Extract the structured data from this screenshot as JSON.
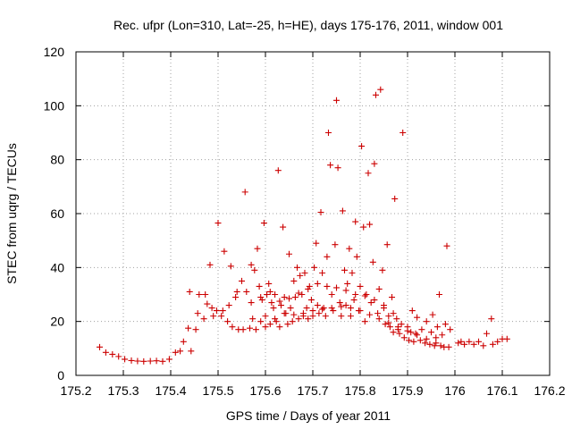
{
  "chart_data": {
    "type": "scatter",
    "title": "Rec. ufpr (Lon=310, Lat=-25, h=HE), days 175-176, 2011, window 001",
    "xlabel": "GPS time / Days of year 2011",
    "ylabel": "STEC from uqrg / TECUs",
    "xlim": [
      175.2,
      176.2
    ],
    "ylim": [
      0,
      120
    ],
    "xticks": [
      175.2,
      175.3,
      175.4,
      175.5,
      175.6,
      175.7,
      175.8,
      175.9,
      176.0,
      176.1,
      176.2
    ],
    "xtick_labels": [
      "175.2",
      "175.3",
      "175.4",
      "175.5",
      "175.6",
      "175.7",
      "175.8",
      "175.9",
      "176",
      "176.1",
      "176.2"
    ],
    "yticks": [
      0,
      20,
      40,
      60,
      80,
      100,
      120
    ],
    "ytick_labels": [
      "0",
      "20",
      "40",
      "60",
      "80",
      "100",
      "120"
    ],
    "grid": true,
    "marker": "plus",
    "color": "#cc0000",
    "points": [
      [
        175.25,
        10.5
      ],
      [
        175.263,
        8.5
      ],
      [
        175.277,
        7.8
      ],
      [
        175.29,
        7.0
      ],
      [
        175.303,
        6.0
      ],
      [
        175.317,
        5.5
      ],
      [
        175.33,
        5.3
      ],
      [
        175.343,
        5.2
      ],
      [
        175.357,
        5.3
      ],
      [
        175.37,
        5.4
      ],
      [
        175.383,
        5.2
      ],
      [
        175.397,
        6.0
      ],
      [
        175.41,
        8.5
      ],
      [
        175.42,
        9.0
      ],
      [
        175.427,
        12.5
      ],
      [
        175.437,
        17.5
      ],
      [
        175.44,
        31.0
      ],
      [
        175.443,
        9.0
      ],
      [
        175.453,
        17.0
      ],
      [
        175.457,
        23.0
      ],
      [
        175.46,
        30.0
      ],
      [
        175.47,
        21.0
      ],
      [
        175.473,
        30.0
      ],
      [
        175.477,
        26.5
      ],
      [
        175.483,
        41.0
      ],
      [
        175.487,
        25.0
      ],
      [
        175.49,
        22.0
      ],
      [
        175.497,
        24.0
      ],
      [
        175.5,
        56.5
      ],
      [
        175.507,
        22.0
      ],
      [
        175.51,
        24.0
      ],
      [
        175.513,
        46.0
      ],
      [
        175.52,
        20.0
      ],
      [
        175.523,
        26.0
      ],
      [
        175.527,
        40.5
      ],
      [
        175.53,
        18.0
      ],
      [
        175.537,
        29.0
      ],
      [
        175.54,
        31.0
      ],
      [
        175.543,
        17.0
      ],
      [
        175.55,
        35.0
      ],
      [
        175.553,
        17.0
      ],
      [
        175.557,
        68.0
      ],
      [
        175.56,
        31.0
      ],
      [
        175.567,
        17.5
      ],
      [
        175.57,
        41.0
      ],
      [
        175.573,
        21.0
      ],
      [
        175.577,
        39.0
      ],
      [
        175.58,
        17.0
      ],
      [
        175.583,
        47.0
      ],
      [
        175.587,
        33.0
      ],
      [
        175.59,
        20.0
      ],
      [
        175.593,
        28.0
      ],
      [
        175.597,
        56.5
      ],
      [
        175.6,
        18.0
      ],
      [
        175.603,
        30.0
      ],
      [
        175.607,
        34.0
      ],
      [
        175.61,
        19.0
      ],
      [
        175.613,
        27.0
      ],
      [
        175.617,
        25.0
      ],
      [
        175.62,
        30.0
      ],
      [
        175.623,
        20.0
      ],
      [
        175.627,
        76.0
      ],
      [
        175.63,
        18.0
      ],
      [
        175.633,
        26.0
      ],
      [
        175.637,
        55.0
      ],
      [
        175.64,
        29.0
      ],
      [
        175.643,
        23.0
      ],
      [
        175.647,
        19.0
      ],
      [
        175.65,
        45.0
      ],
      [
        175.653,
        25.0
      ],
      [
        175.657,
        20.0
      ],
      [
        175.66,
        35.0
      ],
      [
        175.663,
        29.0
      ],
      [
        175.667,
        40.0
      ],
      [
        175.67,
        21.0
      ],
      [
        175.673,
        37.0
      ],
      [
        175.677,
        30.0
      ],
      [
        175.68,
        22.0
      ],
      [
        175.683,
        38.0
      ],
      [
        175.687,
        25.0
      ],
      [
        175.69,
        21.0
      ],
      [
        175.693,
        33.0
      ],
      [
        175.697,
        28.0
      ],
      [
        175.7,
        22.0
      ],
      [
        175.703,
        40.0
      ],
      [
        175.707,
        49.0
      ],
      [
        175.71,
        26.0
      ],
      [
        175.713,
        23.0
      ],
      [
        175.717,
        60.5
      ],
      [
        175.72,
        38.0
      ],
      [
        175.723,
        25.0
      ],
      [
        175.727,
        22.0
      ],
      [
        175.73,
        44.0
      ],
      [
        175.733,
        90.0
      ],
      [
        175.737,
        78.0
      ],
      [
        175.74,
        30.0
      ],
      [
        175.743,
        24.0
      ],
      [
        175.747,
        48.5
      ],
      [
        175.75,
        102.0
      ],
      [
        175.753,
        77.0
      ],
      [
        175.757,
        27.0
      ],
      [
        175.76,
        22.0
      ],
      [
        175.763,
        61.0
      ],
      [
        175.767,
        39.0
      ],
      [
        175.77,
        26.0
      ],
      [
        175.773,
        34.0
      ],
      [
        175.777,
        47.0
      ],
      [
        175.78,
        22.0
      ],
      [
        175.783,
        38.0
      ],
      [
        175.787,
        28.0
      ],
      [
        175.79,
        57.0
      ],
      [
        175.793,
        44.0
      ],
      [
        175.797,
        24.0
      ],
      [
        175.8,
        33.0
      ],
      [
        175.803,
        85.0
      ],
      [
        175.807,
        55.0
      ],
      [
        175.81,
        20.0
      ],
      [
        175.813,
        30.0
      ],
      [
        175.817,
        75.0
      ],
      [
        175.82,
        56.0
      ],
      [
        175.823,
        27.0
      ],
      [
        175.827,
        42.0
      ],
      [
        175.83,
        78.5
      ],
      [
        175.833,
        104.0
      ],
      [
        175.837,
        23.0
      ],
      [
        175.84,
        32.0
      ],
      [
        175.843,
        106.0
      ],
      [
        175.847,
        39.0
      ],
      [
        175.85,
        25.0
      ],
      [
        175.853,
        19.0
      ],
      [
        175.857,
        48.5
      ],
      [
        175.86,
        22.0
      ],
      [
        175.863,
        18.0
      ],
      [
        175.867,
        29.0
      ],
      [
        175.87,
        16.0
      ],
      [
        175.873,
        65.5
      ],
      [
        175.877,
        21.0
      ],
      [
        175.88,
        17.0
      ],
      [
        175.883,
        15.5
      ],
      [
        175.887,
        19.0
      ],
      [
        175.89,
        90.0
      ],
      [
        175.893,
        14.0
      ],
      [
        175.9,
        18.0
      ],
      [
        175.903,
        13.0
      ],
      [
        175.907,
        16.0
      ],
      [
        175.91,
        24.0
      ],
      [
        175.913,
        12.5
      ],
      [
        175.917,
        15.5
      ],
      [
        175.92,
        21.5
      ],
      [
        175.927,
        13.0
      ],
      [
        175.93,
        17.0
      ],
      [
        175.937,
        12.0
      ],
      [
        175.94,
        20.0
      ],
      [
        175.947,
        11.5
      ],
      [
        175.95,
        16.0
      ],
      [
        175.953,
        22.5
      ],
      [
        175.957,
        11.0
      ],
      [
        175.96,
        14.0
      ],
      [
        175.963,
        18.0
      ],
      [
        175.967,
        30.0
      ],
      [
        175.97,
        11.0
      ],
      [
        175.973,
        15.0
      ],
      [
        175.977,
        10.5
      ],
      [
        175.98,
        19.0
      ],
      [
        175.983,
        48.0
      ],
      [
        175.987,
        10.5
      ],
      [
        175.99,
        17.0
      ],
      [
        176.007,
        12.0
      ],
      [
        176.013,
        12.5
      ],
      [
        176.02,
        11.5
      ],
      [
        176.03,
        12.5
      ],
      [
        176.04,
        11.5
      ],
      [
        176.05,
        12.5
      ],
      [
        176.06,
        11.0
      ],
      [
        176.067,
        15.5
      ],
      [
        176.077,
        21.0
      ],
      [
        176.08,
        11.5
      ],
      [
        176.09,
        12.5
      ],
      [
        176.1,
        13.5
      ],
      [
        176.11,
        13.5
      ],
      [
        175.6,
        22.0
      ],
      [
        175.62,
        21.0
      ],
      [
        175.64,
        23.0
      ],
      [
        175.66,
        22.5
      ],
      [
        175.68,
        23.0
      ],
      [
        175.7,
        24.0
      ],
      [
        175.72,
        24.5
      ],
      [
        175.74,
        25.0
      ],
      [
        175.76,
        25.5
      ],
      [
        175.78,
        25.0
      ],
      [
        175.8,
        24.0
      ],
      [
        175.82,
        22.5
      ],
      [
        175.84,
        21.0
      ],
      [
        175.86,
        19.5
      ],
      [
        175.88,
        18.0
      ],
      [
        175.9,
        16.5
      ],
      [
        175.92,
        15.0
      ],
      [
        175.94,
        13.5
      ],
      [
        175.96,
        12.0
      ],
      [
        175.57,
        27.0
      ],
      [
        175.59,
        29.0
      ],
      [
        175.61,
        31.0
      ],
      [
        175.63,
        27.5
      ],
      [
        175.65,
        28.5
      ],
      [
        175.67,
        30.5
      ],
      [
        175.69,
        32.0
      ],
      [
        175.71,
        34.0
      ],
      [
        175.73,
        33.0
      ],
      [
        175.75,
        32.5
      ],
      [
        175.77,
        31.5
      ],
      [
        175.79,
        30.0
      ],
      [
        175.81,
        29.5
      ],
      [
        175.83,
        28.0
      ],
      [
        175.85,
        26.0
      ],
      [
        175.87,
        23.0
      ]
    ]
  }
}
